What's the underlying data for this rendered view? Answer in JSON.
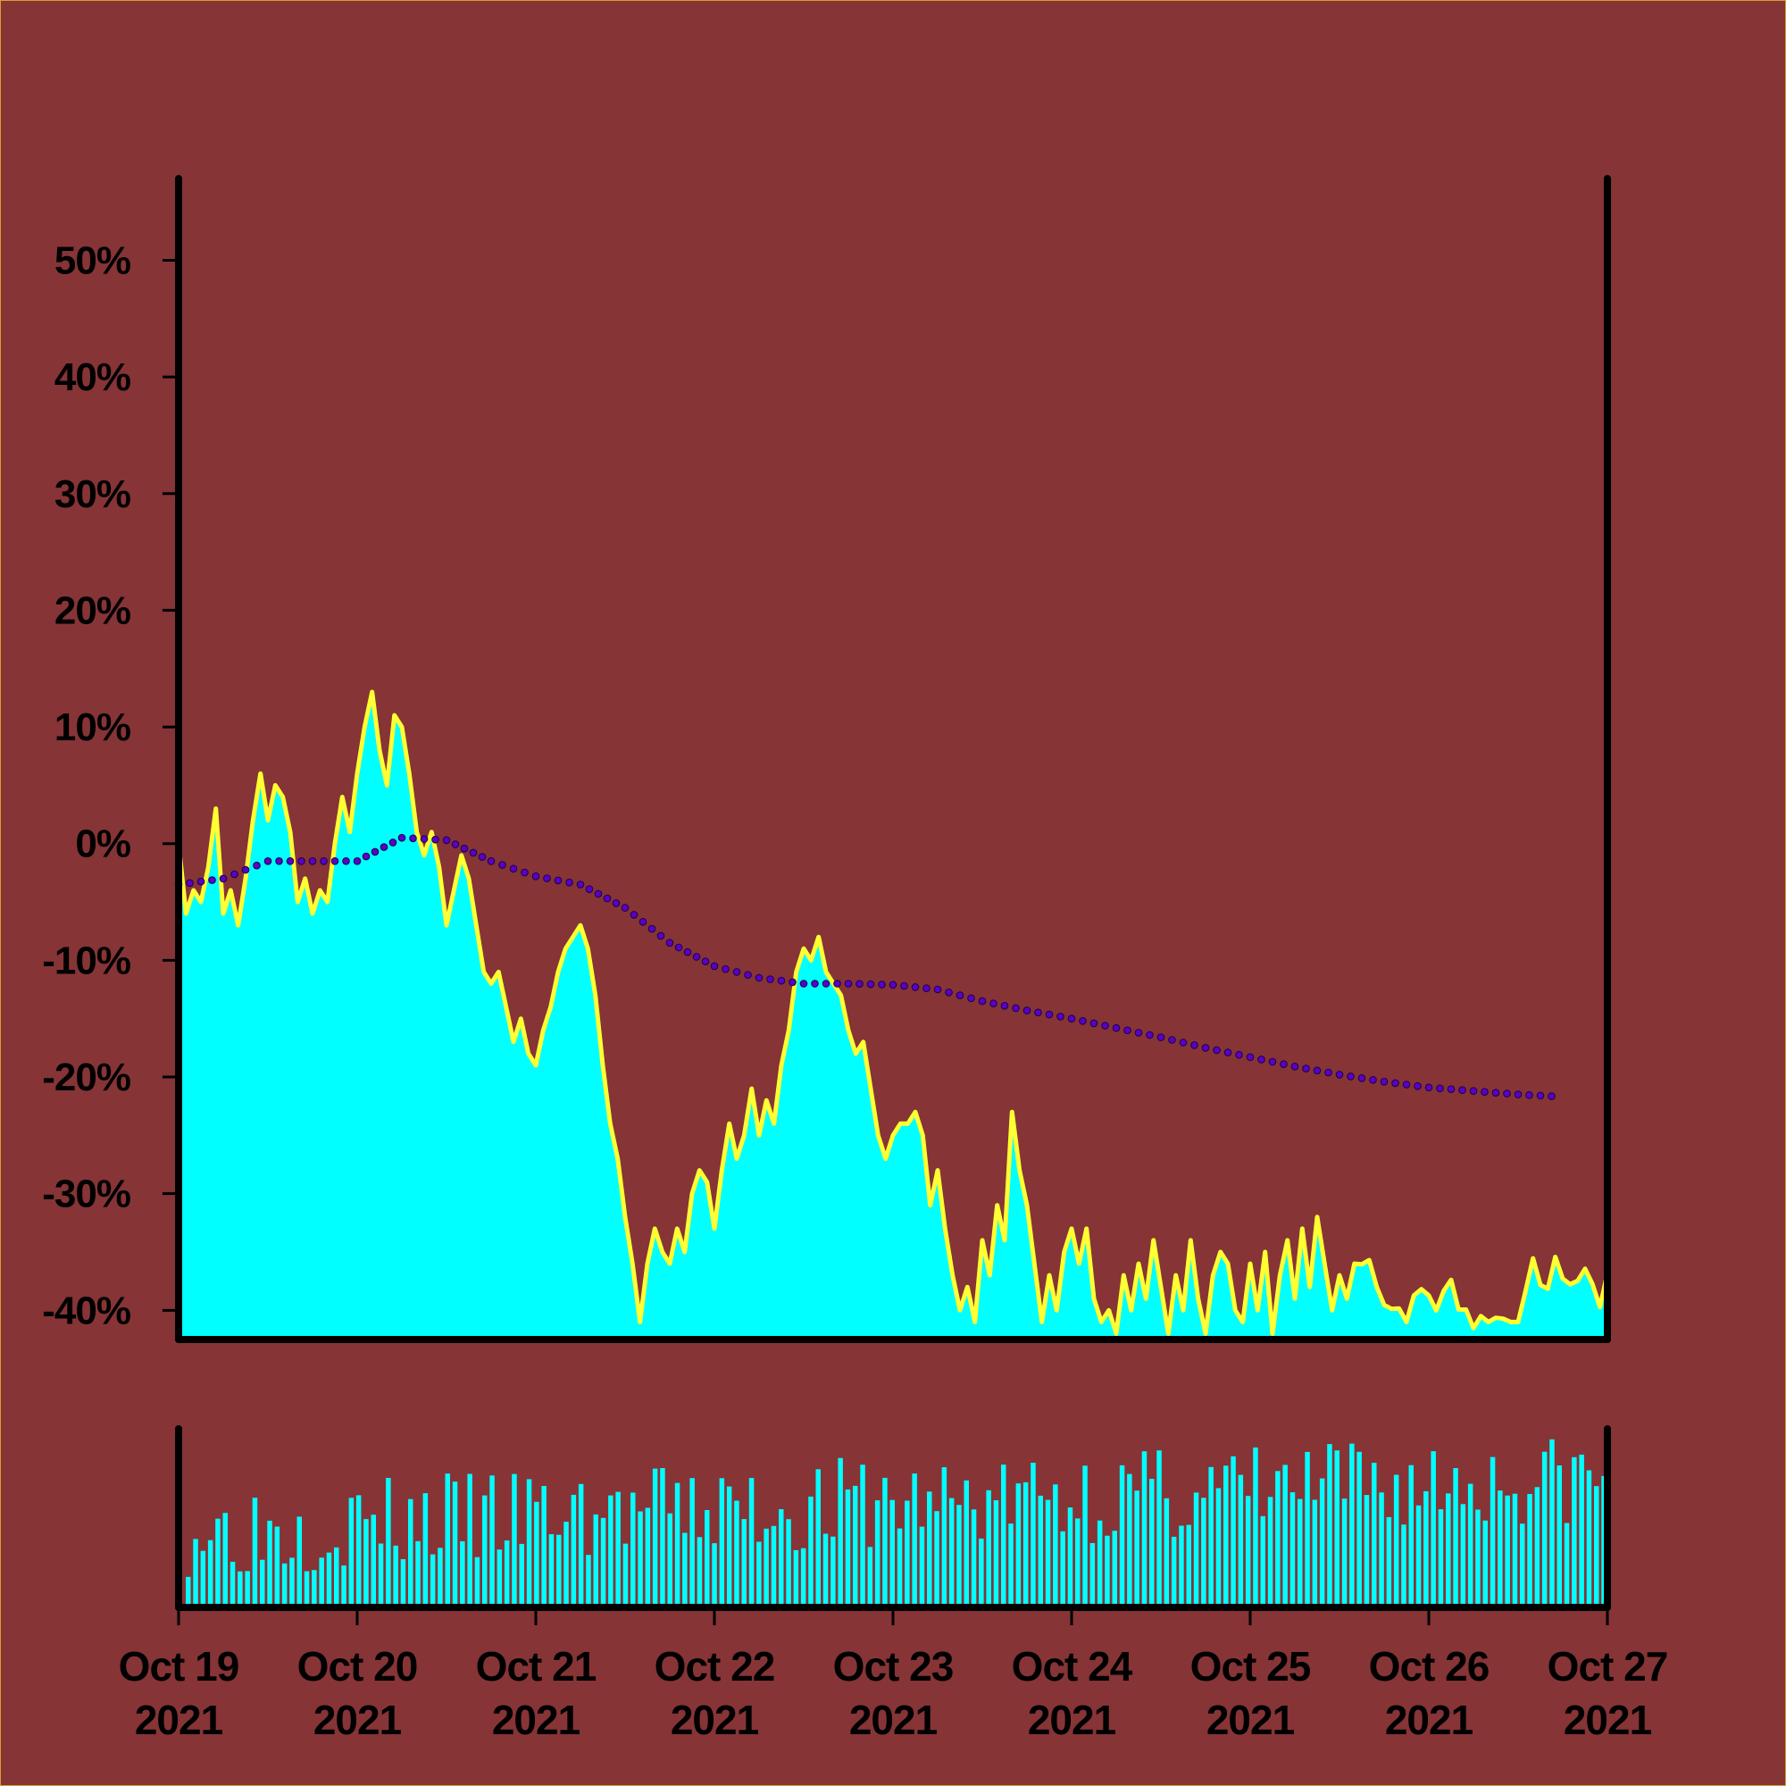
{
  "chart_data": {
    "type": "area",
    "title": "",
    "xlabel": "",
    "ylabel": "",
    "x_range": [
      "2021-10-19 00:00",
      "2021-10-27 00:00"
    ],
    "ylim": [
      -42.5,
      57
    ],
    "y_ticks": [
      {
        "value": 50,
        "label": "50%"
      },
      {
        "value": 40,
        "label": "40%"
      },
      {
        "value": 30,
        "label": "30%"
      },
      {
        "value": 20,
        "label": "20%"
      },
      {
        "value": 10,
        "label": "10%"
      },
      {
        "value": 0,
        "label": "0%"
      },
      {
        "value": -10,
        "label": "-10%"
      },
      {
        "value": -20,
        "label": "-20%"
      },
      {
        "value": -30,
        "label": "-30%"
      },
      {
        "value": -40,
        "label": "-40%"
      }
    ],
    "x_ticks": [
      {
        "date": "2021-10-19",
        "line1": "Oct 19",
        "line2": "2021"
      },
      {
        "date": "2021-10-20",
        "line1": "Oct 20",
        "line2": "2021"
      },
      {
        "date": "2021-10-21",
        "line1": "Oct 21",
        "line2": "2021"
      },
      {
        "date": "2021-10-22",
        "line1": "Oct 22",
        "line2": "2021"
      },
      {
        "date": "2021-10-23",
        "line1": "Oct 23",
        "line2": "2021"
      },
      {
        "date": "2021-10-24",
        "line1": "Oct 24",
        "line2": "2021"
      },
      {
        "date": "2021-10-25",
        "line1": "Oct 25",
        "line2": "2021"
      },
      {
        "date": "2021-10-26",
        "line1": "Oct 26",
        "line2": "2021"
      },
      {
        "date": "2021-10-27",
        "line1": "Oct 27",
        "line2": "2021"
      }
    ],
    "series": [
      {
        "kind": "area",
        "points": [
          [
            "2021-10-19 00:00",
            0
          ],
          [
            "2021-10-19 01:00",
            -6
          ],
          [
            "2021-10-19 02:00",
            -4
          ],
          [
            "2021-10-19 03:00",
            -5
          ],
          [
            "2021-10-19 04:00",
            -2
          ],
          [
            "2021-10-19 05:00",
            3
          ],
          [
            "2021-10-19 06:00",
            -6
          ],
          [
            "2021-10-19 07:00",
            -4
          ],
          [
            "2021-10-19 08:00",
            -7
          ],
          [
            "2021-10-19 09:00",
            -3
          ],
          [
            "2021-10-19 10:00",
            2
          ],
          [
            "2021-10-19 11:00",
            6
          ],
          [
            "2021-10-19 12:00",
            2
          ],
          [
            "2021-10-19 13:00",
            5
          ],
          [
            "2021-10-19 14:00",
            4
          ],
          [
            "2021-10-19 15:00",
            1
          ],
          [
            "2021-10-19 16:00",
            -5
          ],
          [
            "2021-10-19 17:00",
            -3
          ],
          [
            "2021-10-19 18:00",
            -6
          ],
          [
            "2021-10-19 19:00",
            -4
          ],
          [
            "2021-10-19 20:00",
            -5
          ],
          [
            "2021-10-19 21:00",
            0
          ],
          [
            "2021-10-19 22:00",
            4
          ],
          [
            "2021-10-19 23:00",
            1
          ],
          [
            "2021-10-20 00:00",
            6
          ],
          [
            "2021-10-20 01:00",
            10
          ],
          [
            "2021-10-20 02:00",
            13
          ],
          [
            "2021-10-20 03:00",
            8
          ],
          [
            "2021-10-20 04:00",
            5
          ],
          [
            "2021-10-20 05:00",
            11
          ],
          [
            "2021-10-20 06:00",
            10
          ],
          [
            "2021-10-20 07:00",
            6
          ],
          [
            "2021-10-20 08:00",
            1
          ],
          [
            "2021-10-20 09:00",
            -1
          ],
          [
            "2021-10-20 10:00",
            1
          ],
          [
            "2021-10-20 11:00",
            -2
          ],
          [
            "2021-10-20 12:00",
            -7
          ],
          [
            "2021-10-20 13:00",
            -4
          ],
          [
            "2021-10-20 14:00",
            -1
          ],
          [
            "2021-10-20 15:00",
            -3
          ],
          [
            "2021-10-20 16:00",
            -7
          ],
          [
            "2021-10-20 17:00",
            -11
          ],
          [
            "2021-10-20 18:00",
            -12
          ],
          [
            "2021-10-20 19:00",
            -11
          ],
          [
            "2021-10-20 20:00",
            -14
          ],
          [
            "2021-10-20 21:00",
            -17
          ],
          [
            "2021-10-20 22:00",
            -15
          ],
          [
            "2021-10-20 23:00",
            -18
          ],
          [
            "2021-10-21 00:00",
            -19
          ],
          [
            "2021-10-21 01:00",
            -16
          ],
          [
            "2021-10-21 02:00",
            -14
          ],
          [
            "2021-10-21 03:00",
            -11
          ],
          [
            "2021-10-21 04:00",
            -9
          ],
          [
            "2021-10-21 05:00",
            -8
          ],
          [
            "2021-10-21 06:00",
            -7
          ],
          [
            "2021-10-21 07:00",
            -9
          ],
          [
            "2021-10-21 08:00",
            -13
          ],
          [
            "2021-10-21 09:00",
            -19
          ],
          [
            "2021-10-21 10:00",
            -24
          ],
          [
            "2021-10-21 11:00",
            -27
          ],
          [
            "2021-10-21 12:00",
            -32
          ],
          [
            "2021-10-21 13:00",
            -36
          ],
          [
            "2021-10-21 14:00",
            -41
          ],
          [
            "2021-10-21 15:00",
            -36
          ],
          [
            "2021-10-21 16:00",
            -33
          ],
          [
            "2021-10-21 17:00",
            -35
          ],
          [
            "2021-10-21 18:00",
            -36
          ],
          [
            "2021-10-21 19:00",
            -33
          ],
          [
            "2021-10-21 20:00",
            -35
          ],
          [
            "2021-10-21 21:00",
            -30
          ],
          [
            "2021-10-21 22:00",
            -28
          ],
          [
            "2021-10-21 23:00",
            -29
          ],
          [
            "2021-10-22 00:00",
            -33
          ],
          [
            "2021-10-22 01:00",
            -28
          ],
          [
            "2021-10-22 02:00",
            -24
          ],
          [
            "2021-10-22 03:00",
            -27
          ],
          [
            "2021-10-22 04:00",
            -25
          ],
          [
            "2021-10-22 05:00",
            -21
          ],
          [
            "2021-10-22 06:00",
            -25
          ],
          [
            "2021-10-22 07:00",
            -22
          ],
          [
            "2021-10-22 08:00",
            -24
          ],
          [
            "2021-10-22 09:00",
            -19
          ],
          [
            "2021-10-22 10:00",
            -16
          ],
          [
            "2021-10-22 11:00",
            -11
          ],
          [
            "2021-10-22 12:00",
            -9
          ],
          [
            "2021-10-22 13:00",
            -10
          ],
          [
            "2021-10-22 14:00",
            -8
          ],
          [
            "2021-10-22 15:00",
            -11
          ],
          [
            "2021-10-22 16:00",
            -12
          ],
          [
            "2021-10-22 17:00",
            -13
          ],
          [
            "2021-10-22 18:00",
            -16
          ],
          [
            "2021-10-22 19:00",
            -18
          ],
          [
            "2021-10-22 20:00",
            -17
          ],
          [
            "2021-10-22 21:00",
            -21
          ],
          [
            "2021-10-22 22:00",
            -25
          ],
          [
            "2021-10-22 23:00",
            -27
          ],
          [
            "2021-10-23 00:00",
            -25
          ],
          [
            "2021-10-23 01:00",
            -24
          ],
          [
            "2021-10-23 02:00",
            -24
          ],
          [
            "2021-10-23 03:00",
            -23
          ],
          [
            "2021-10-23 04:00",
            -25
          ],
          [
            "2021-10-23 05:00",
            -31
          ],
          [
            "2021-10-23 06:00",
            -28
          ],
          [
            "2021-10-23 07:00",
            -33
          ],
          [
            "2021-10-23 08:00",
            -37
          ],
          [
            "2021-10-23 09:00",
            -40
          ],
          [
            "2021-10-23 10:00",
            -38
          ],
          [
            "2021-10-23 11:00",
            -41
          ],
          [
            "2021-10-23 12:00",
            -34
          ],
          [
            "2021-10-23 13:00",
            -37
          ],
          [
            "2021-10-23 14:00",
            -31
          ],
          [
            "2021-10-23 15:00",
            -34
          ],
          [
            "2021-10-23 16:00",
            -23
          ],
          [
            "2021-10-23 17:00",
            -28
          ],
          [
            "2021-10-23 18:00",
            -31
          ],
          [
            "2021-10-23 19:00",
            -36
          ],
          [
            "2021-10-23 20:00",
            -41
          ],
          [
            "2021-10-23 21:00",
            -37
          ],
          [
            "2021-10-23 22:00",
            -40
          ],
          [
            "2021-10-23 23:00",
            -35
          ],
          [
            "2021-10-24 00:00",
            -33
          ],
          [
            "2021-10-24 01:00",
            -36
          ],
          [
            "2021-10-24 02:00",
            -33
          ],
          [
            "2021-10-24 03:00",
            -39
          ],
          [
            "2021-10-24 04:00",
            -41
          ],
          [
            "2021-10-24 05:00",
            -40
          ],
          [
            "2021-10-24 06:00",
            -42
          ],
          [
            "2021-10-24 07:00",
            -37
          ],
          [
            "2021-10-24 08:00",
            -40
          ],
          [
            "2021-10-24 09:00",
            -36
          ],
          [
            "2021-10-24 10:00",
            -39
          ],
          [
            "2021-10-24 11:00",
            -34
          ],
          [
            "2021-10-24 12:00",
            -38
          ],
          [
            "2021-10-24 13:00",
            -42
          ],
          [
            "2021-10-24 14:00",
            -37
          ],
          [
            "2021-10-24 15:00",
            -40
          ],
          [
            "2021-10-24 16:00",
            -34
          ],
          [
            "2021-10-24 17:00",
            -39
          ],
          [
            "2021-10-24 18:00",
            -42
          ],
          [
            "2021-10-24 19:00",
            -37
          ],
          [
            "2021-10-24 20:00",
            -35
          ],
          [
            "2021-10-24 21:00",
            -36
          ],
          [
            "2021-10-24 22:00",
            -40
          ],
          [
            "2021-10-24 23:00",
            -41
          ],
          [
            "2021-10-25 00:00",
            -36
          ],
          [
            "2021-10-25 01:00",
            -40
          ],
          [
            "2021-10-25 02:00",
            -35
          ],
          [
            "2021-10-25 03:00",
            -42
          ],
          [
            "2021-10-25 04:00",
            -37
          ],
          [
            "2021-10-25 05:00",
            -34
          ],
          [
            "2021-10-25 06:00",
            -39
          ],
          [
            "2021-10-25 07:00",
            -33
          ],
          [
            "2021-10-25 08:00",
            -38
          ],
          [
            "2021-10-25 09:00",
            -32
          ],
          [
            "2021-10-25 10:00",
            -36
          ],
          [
            "2021-10-25 11:00",
            -40
          ],
          [
            "2021-10-25 12:00",
            -37
          ],
          [
            "2021-10-25 13:00",
            -39
          ],
          [
            "2021-10-25 14:00",
            -36
          ]
        ]
      },
      {
        "kind": "dotted-trend",
        "color": "#5a00c8",
        "points": [
          [
            "2021-10-19 00:00",
            -3.5
          ],
          [
            "2021-10-19 06:00",
            -3.0
          ],
          [
            "2021-10-19 12:00",
            -1.5
          ],
          [
            "2021-10-19 18:00",
            -1.5
          ],
          [
            "2021-10-20 00:00",
            -1.5
          ],
          [
            "2021-10-20 06:00",
            0.5
          ],
          [
            "2021-10-20 12:00",
            0.3
          ],
          [
            "2021-10-20 18:00",
            -1.5
          ],
          [
            "2021-10-21 00:00",
            -2.8
          ],
          [
            "2021-10-21 06:00",
            -3.5
          ],
          [
            "2021-10-21 12:00",
            -5.5
          ],
          [
            "2021-10-21 18:00",
            -8.5
          ],
          [
            "2021-10-22 00:00",
            -10.5
          ],
          [
            "2021-10-22 06:00",
            -11.5
          ],
          [
            "2021-10-22 12:00",
            -12.0
          ],
          [
            "2021-10-22 18:00",
            -12.0
          ],
          [
            "2021-10-23 00:00",
            -12.1
          ],
          [
            "2021-10-23 06:00",
            -12.5
          ],
          [
            "2021-10-23 12:00",
            -13.5
          ],
          [
            "2021-10-23 18:00",
            -14.3
          ],
          [
            "2021-10-24 00:00",
            -15.0
          ],
          [
            "2021-10-24 06:00",
            -15.8
          ],
          [
            "2021-10-24 12:00",
            -16.6
          ],
          [
            "2021-10-24 18:00",
            -17.5
          ],
          [
            "2021-10-25 00:00",
            -18.3
          ],
          [
            "2021-10-25 06:00",
            -19.1
          ],
          [
            "2021-10-25 12:00",
            -19.8
          ],
          [
            "2021-10-25 18:00",
            -20.4
          ],
          [
            "2021-10-26 00:00",
            -20.9
          ],
          [
            "2021-10-26 06:00",
            -21.2
          ],
          [
            "2021-10-26 12:00",
            -21.5
          ],
          [
            "2021-10-26 18:00",
            -21.7
          ]
        ]
      }
    ],
    "volume_range": [
      0,
      100
    ]
  }
}
